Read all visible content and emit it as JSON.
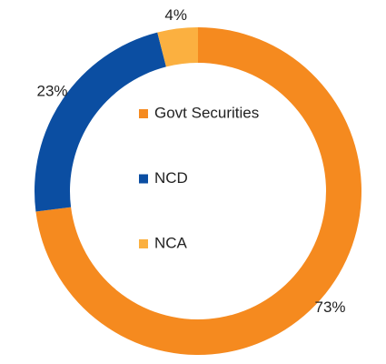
{
  "chart_data": {
    "type": "donut",
    "categories": [
      "Govt Securities",
      "NCD",
      "NCA"
    ],
    "values": [
      73,
      23,
      4
    ],
    "value_labels": [
      "73%",
      "23%",
      "4%"
    ],
    "colors": [
      "#f58a1f",
      "#0b4ea2",
      "#fbb040"
    ]
  }
}
